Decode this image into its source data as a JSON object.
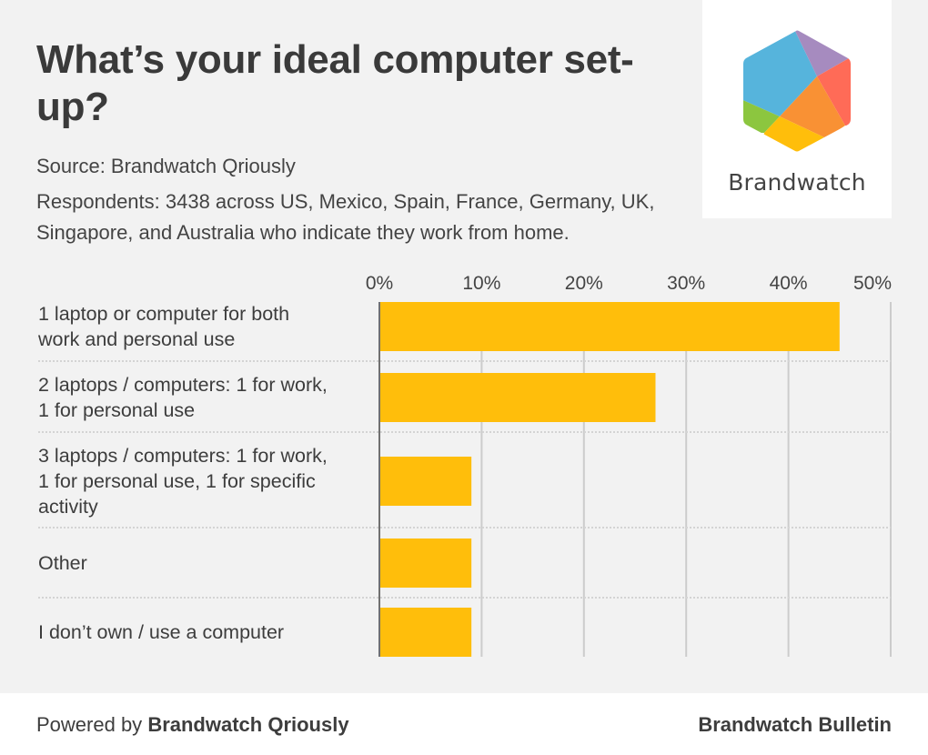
{
  "header": {
    "title": "What’s your ideal computer set-up?",
    "source": "Source: Brandwatch Qriously",
    "respondents": "Respondents: 3438 across US, Mexico, Spain, France, Germany, UK, Singapore, and Australia who indicate they work from home."
  },
  "logo": {
    "name": "Brandwatch",
    "icon": "brandwatch-hexagon-icon",
    "colors": {
      "blue": "#56b4dc",
      "purple": "#a68bbf",
      "red": "#ff6b57",
      "orange": "#f99134",
      "green": "#8cc63f",
      "yellow": "#ffbe0b"
    }
  },
  "footer": {
    "powered_prefix": "Powered by",
    "powered_brand": "Brandwatch Qriously",
    "publisher": "Brandwatch Bulletin"
  },
  "chart_data": {
    "type": "bar",
    "orientation": "horizontal",
    "title": "What’s your ideal computer set-up?",
    "xlabel": "",
    "ylabel": "",
    "xlim": [
      0,
      50
    ],
    "x_ticks": [
      0,
      10,
      20,
      30,
      40,
      50
    ],
    "x_tick_labels": [
      "0%",
      "10%",
      "20%",
      "30%",
      "40%",
      "50%"
    ],
    "axis_position": "top",
    "grid": true,
    "bar_color": "#ffbe0b",
    "categories": [
      [
        "1 laptop or computer for both",
        "work and personal use"
      ],
      [
        "2 laptops / computers: 1 for work,",
        "1 for personal use"
      ],
      [
        "3 laptops / computers: 1 for work,",
        "1 for personal use, 1 for specific",
        "activity"
      ],
      [
        "Other"
      ],
      [
        "I don’t own / use a computer"
      ]
    ],
    "values": [
      45,
      27,
      9,
      9,
      9
    ],
    "unit": "%"
  }
}
